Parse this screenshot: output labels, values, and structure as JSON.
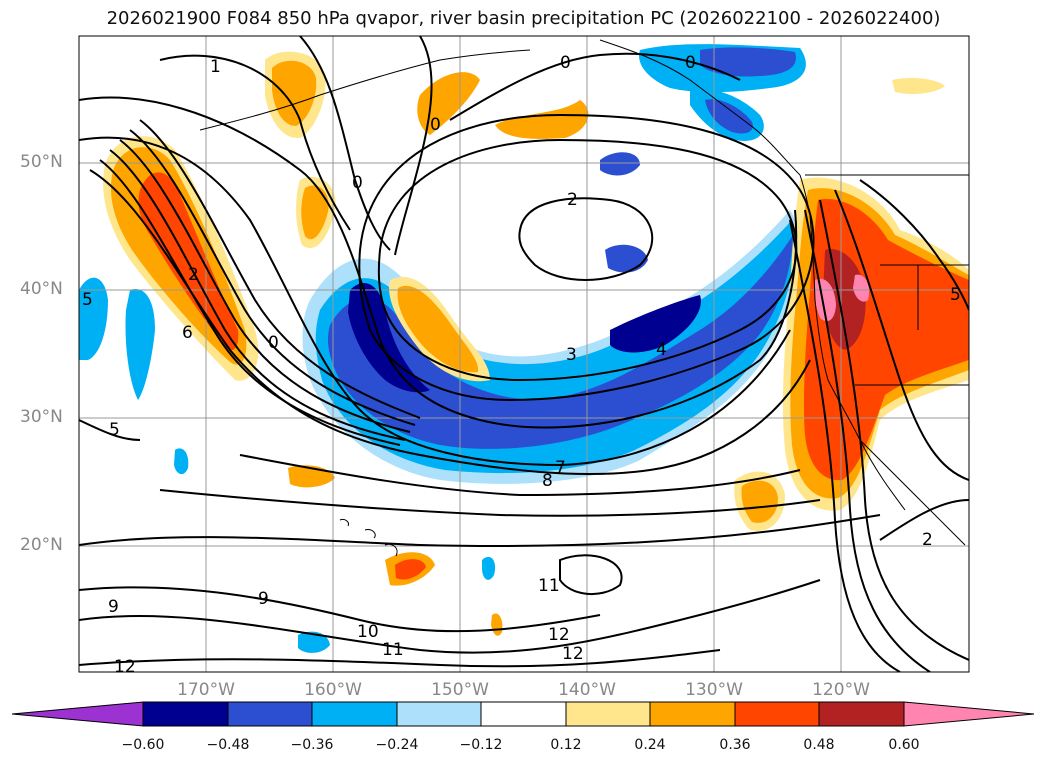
{
  "title": "2026021900 F084 850 hPa qvapor, river basin precipitation PC (2026022100 - 2026022400)",
  "latitude_labels": [
    "50°N",
    "40°N",
    "30°N",
    "20°N"
  ],
  "longitude_labels": [
    "170°W",
    "160°W",
    "150°W",
    "140°W",
    "130°W",
    "120°W"
  ],
  "colorbar": {
    "ticks": [
      "−0.60",
      "−0.48",
      "−0.36",
      "−0.24",
      "−0.12",
      "0.12",
      "0.24",
      "0.36",
      "0.48",
      "0.60"
    ],
    "colors": [
      "#9b32d1",
      "#000090",
      "#2b4fd0",
      "#00b0f5",
      "#ade0fa",
      "#ffffff",
      "#ffe68c",
      "#ffa500",
      "#ff4500",
      "#b22222",
      "#ff85b0"
    ]
  },
  "contour_labels": [
    "0",
    "0",
    "0",
    "0",
    "0",
    "2",
    "2",
    "3",
    "4",
    "5",
    "5",
    "6",
    "7",
    "8",
    "9",
    "9",
    "10",
    "11",
    "11",
    "12",
    "12",
    "12",
    "2",
    "5",
    "1"
  ]
}
